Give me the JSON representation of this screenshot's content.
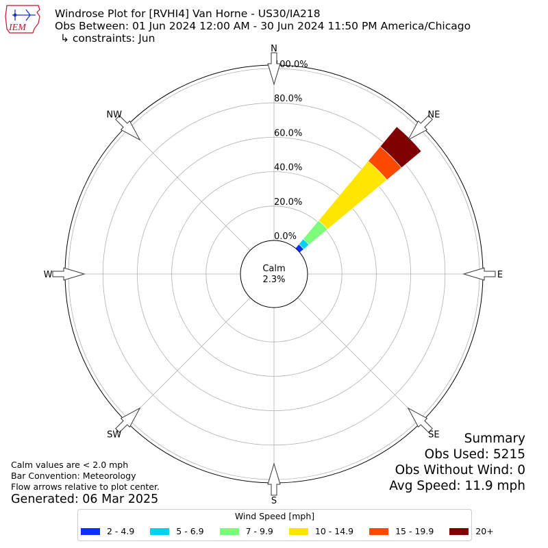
{
  "header": {
    "logo_text": "IEM",
    "title": "Windrose Plot for [RVHI4] Van Horne - US30/IA218",
    "obs_range": "Obs Between: 01 Jun 2024 12:00 AM - 30 Jun 2024 11:50 PM America/Chicago",
    "constraints": "↳ constraints: Jun"
  },
  "notes": {
    "calm_note": "Calm values are < 2.0 mph",
    "bar_convention": "Bar Convention: Meteorology",
    "flow_note": "Flow arrows relative to plot center.",
    "generated": "Generated: 06 Mar 2025"
  },
  "summary": {
    "heading": "Summary",
    "obs_used": "Obs Used: 5215",
    "obs_without_wind": "Obs Without Wind: 0",
    "avg_speed": "Avg Speed: 11.9 mph"
  },
  "legend": {
    "title": "Wind Speed [mph]",
    "items": [
      {
        "label": "2 - 4.9",
        "color": "#0a31ff"
      },
      {
        "label": "5 - 6.9",
        "color": "#00d2f2"
      },
      {
        "label": "7 - 9.9",
        "color": "#7dfc7a"
      },
      {
        "label": "10 - 14.9",
        "color": "#ffe500"
      },
      {
        "label": "15 - 19.9",
        "color": "#ff4800"
      },
      {
        "label": "20+",
        "color": "#7f0000"
      }
    ]
  },
  "chart_data": {
    "type": "windrose",
    "direction_labels": [
      "N",
      "NE",
      "E",
      "SE",
      "S",
      "SW",
      "W",
      "NW"
    ],
    "radial_ticks": [
      0,
      20,
      40,
      60,
      80,
      100
    ],
    "radial_tick_labels": [
      "0.0%",
      "20.0%",
      "40.0%",
      "60.0%",
      "80.0%",
      "100.0%"
    ],
    "rmax": 100,
    "calm": {
      "label": "Calm",
      "value": "2.3%"
    },
    "grid": true,
    "legend_position": "bottom",
    "sectors": [
      {
        "direction": "NE",
        "angle_deg": 45,
        "segments": [
          {
            "bin": "2 - 4.9",
            "start": 0,
            "end": 3
          },
          {
            "bin": "5 - 6.9",
            "start": 3,
            "end": 7
          },
          {
            "bin": "7 - 9.9",
            "start": 7,
            "end": 21
          },
          {
            "bin": "10 - 14.9",
            "start": 21,
            "end": 66
          },
          {
            "bin": "15 - 19.9",
            "start": 66,
            "end": 77
          },
          {
            "bin": "20+",
            "start": 77,
            "end": 92
          }
        ]
      }
    ]
  }
}
